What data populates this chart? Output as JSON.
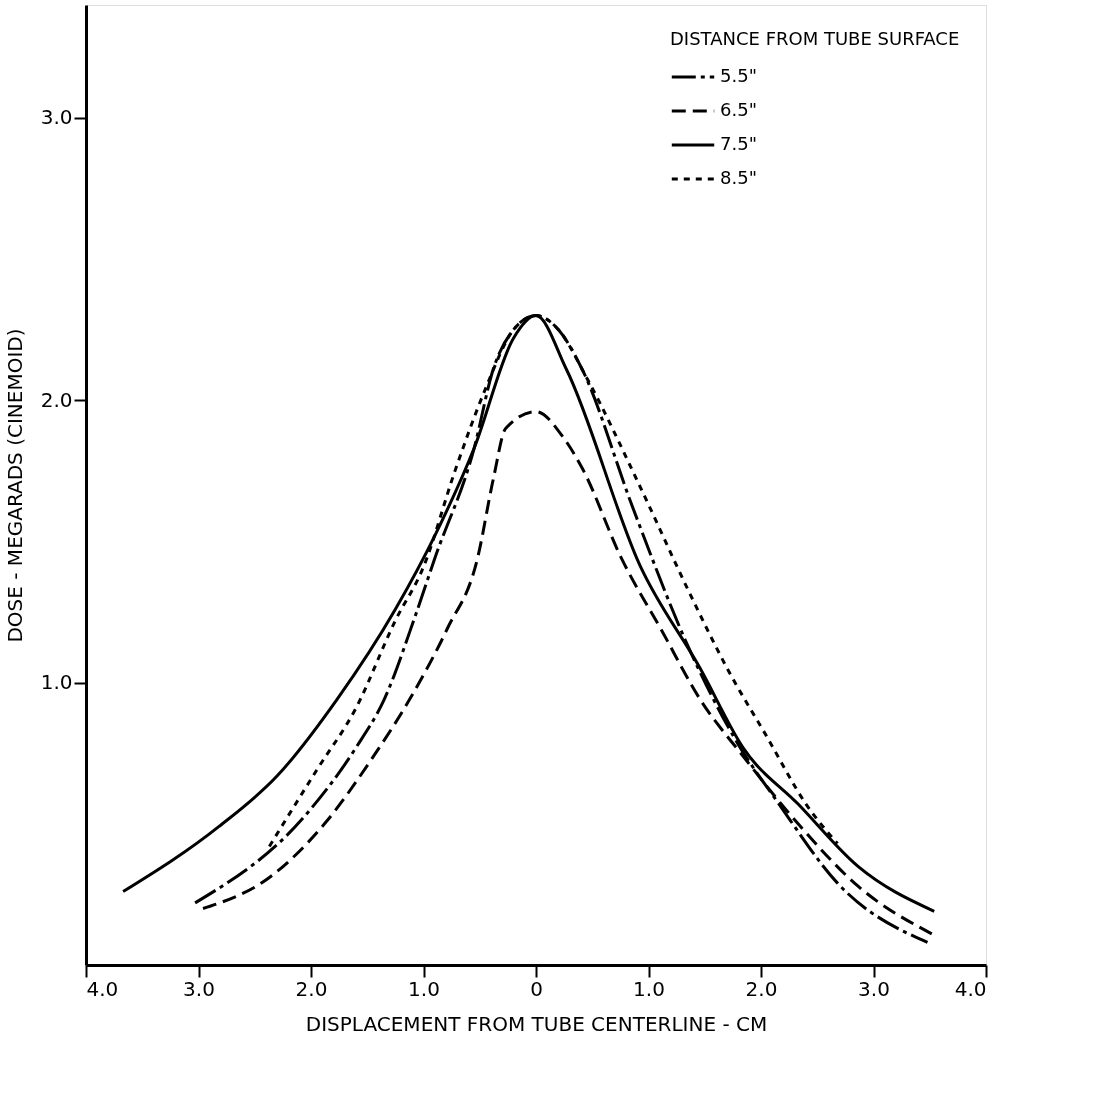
{
  "chart_data": {
    "type": "line",
    "xlabel": "DISPLACEMENT  FROM  TUBE  CENTERLINE - CM",
    "ylabel": "DOSE - MEGARADS  (CINEMOID)",
    "legend_title": "DISTANCE FROM TUBE SURFACE",
    "legend": "top right",
    "grid": false,
    "xlim": [
      -4,
      4
    ],
    "ylim": [
      0,
      3.4
    ],
    "xticks": [
      {
        "value": -4,
        "label": "4.0"
      },
      {
        "value": -3,
        "label": "3.0"
      },
      {
        "value": -2,
        "label": "2.0"
      },
      {
        "value": -1,
        "label": "1.0"
      },
      0,
      {
        "value": 1,
        "label": "1.0"
      },
      {
        "value": 2,
        "label": "2.0"
      },
      {
        "value": 3,
        "label": "3.0"
      },
      {
        "value": 4,
        "label": "4.0"
      }
    ],
    "yticks": [
      {
        "value": 1,
        "label": "1.0"
      },
      {
        "value": 2,
        "label": "2.0"
      },
      {
        "value": 3,
        "label": "3.0"
      }
    ],
    "series": [
      {
        "name": "5.5\"",
        "color": "#000000",
        "line_style": "dashdot",
        "x": [
          -3.03,
          -2.05,
          -1.6,
          -1.35,
          -1.07,
          -0.9,
          -0.55,
          -0.38,
          -0.2,
          0,
          0.2,
          0.41,
          0.86,
          1.35,
          1.77,
          2.16,
          2.68,
          3.48
        ],
        "values": [
          0.22,
          0.53,
          0.77,
          0.94,
          1.24,
          1.44,
          1.83,
          2.11,
          2.25,
          2.3,
          2.25,
          2.11,
          1.62,
          1.13,
          0.8,
          0.57,
          0.29,
          0.08
        ]
      },
      {
        "name": "6.5\"",
        "color": "#000000",
        "line_style": "dashed",
        "x": [
          -2.96,
          -2.37,
          -1.88,
          -1.46,
          -1.11,
          -0.79,
          -0.52,
          -0.38,
          -0.27,
          0,
          0.24,
          0.41,
          0.76,
          1.11,
          1.46,
          1.84,
          2.33,
          2.86,
          3.52
        ],
        "values": [
          0.2,
          0.31,
          0.5,
          0.73,
          0.95,
          1.19,
          1.44,
          1.72,
          1.9,
          1.96,
          1.87,
          1.76,
          1.44,
          1.19,
          0.94,
          0.74,
          0.5,
          0.28,
          0.11
        ]
      },
      {
        "name": "7.5\"",
        "color": "#000000",
        "line_style": "solid",
        "x": [
          -3.67,
          -2.82,
          -2.3,
          -1.77,
          -1.25,
          -0.9,
          -0.55,
          -0.2,
          0,
          0.27,
          0.93,
          1.46,
          1.84,
          2.33,
          2.86,
          3.54
        ],
        "values": [
          0.26,
          0.49,
          0.67,
          0.94,
          1.26,
          1.52,
          1.83,
          2.22,
          2.3,
          2.11,
          1.41,
          1.05,
          0.77,
          0.57,
          0.35,
          0.19
        ]
      },
      {
        "name": "8.5\"",
        "color": "#000000",
        "line_style": "dotted",
        "x": [
          -2.37,
          -1.95,
          -1.6,
          -1.25,
          -1.0,
          -0.72,
          -0.45,
          -0.2,
          0,
          0.2,
          0.45,
          0.93,
          1.35,
          1.7,
          2.05,
          2.4,
          2.68
        ],
        "values": [
          0.42,
          0.69,
          0.91,
          1.22,
          1.41,
          1.75,
          2.04,
          2.25,
          2.3,
          2.25,
          2.08,
          1.69,
          1.33,
          1.05,
          0.81,
          0.57,
          0.43
        ]
      }
    ]
  }
}
